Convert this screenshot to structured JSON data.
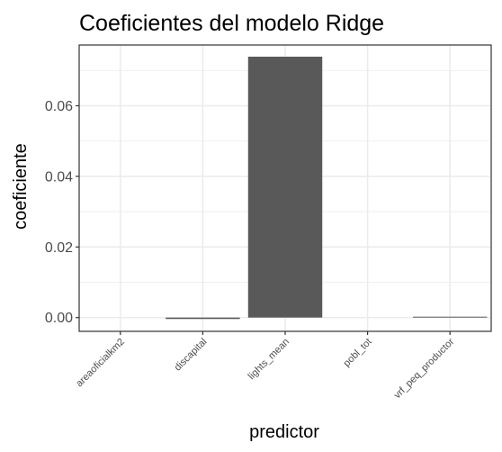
{
  "chart_data": {
    "type": "bar",
    "title": "Coeficientes del modelo Ridge",
    "xlabel": "predictor",
    "ylabel": "coeficiente",
    "categories": [
      "areaoficialkm2",
      "discapital",
      "lights_mean",
      "pobl_tot",
      "vrf_peq_productor"
    ],
    "values": [
      0.0,
      -0.0004,
      0.0739,
      0.0,
      0.0002
    ],
    "ylim": [
      -0.0039,
      0.0772
    ],
    "yticks": [
      0.0,
      0.02,
      0.04,
      0.06
    ],
    "ytick_labels": [
      "0.00",
      "0.02",
      "0.04",
      "0.06"
    ],
    "grid": true,
    "legend": "none",
    "colors": {
      "bar": "#595959",
      "panel_border": "#333333",
      "grid": "#ebebeb"
    }
  }
}
